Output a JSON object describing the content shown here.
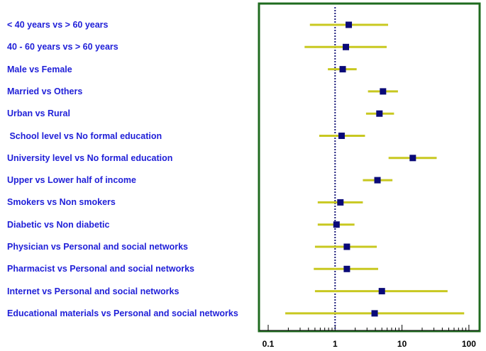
{
  "chart_data": {
    "type": "forest",
    "xscale": "log",
    "xlim": [
      0.07,
      125
    ],
    "reference_line": 1,
    "xticks": [
      {
        "value": 0.1,
        "label": "0.1"
      },
      {
        "value": 1,
        "label": "1"
      },
      {
        "value": 10,
        "label": "10"
      },
      {
        "value": 100,
        "label": "100"
      }
    ],
    "rows": [
      {
        "label": "< 40 years vs > 60 years",
        "or": 1.6,
        "low": 0.42,
        "high": 6.2
      },
      {
        "label": "40 - 60 years vs > 60 years",
        "or": 1.45,
        "low": 0.35,
        "high": 5.9
      },
      {
        "label": "Male vs Female",
        "or": 1.3,
        "low": 0.78,
        "high": 2.1
      },
      {
        "label": "Married vs Others",
        "or": 5.2,
        "low": 3.1,
        "high": 8.7
      },
      {
        "label": "Urban vs Rural",
        "or": 4.6,
        "low": 2.9,
        "high": 7.6
      },
      {
        "label": " School level vs No formal education",
        "or": 1.25,
        "low": 0.58,
        "high": 2.8
      },
      {
        "label": "University level vs No formal education",
        "or": 14.5,
        "low": 6.3,
        "high": 33
      },
      {
        "label": "Upper vs Lower half of income",
        "or": 4.3,
        "low": 2.6,
        "high": 7.2
      },
      {
        "label": "Smokers vs Non smokers",
        "or": 1.2,
        "low": 0.55,
        "high": 2.6
      },
      {
        "label": "Diabetic vs Non diabetic",
        "or": 1.05,
        "low": 0.55,
        "high": 1.95
      },
      {
        "label": "Physician vs Personal and social networks",
        "or": 1.5,
        "low": 0.5,
        "high": 4.2
      },
      {
        "label": "Pharmacist vs Personal and social networks",
        "or": 1.5,
        "low": 0.48,
        "high": 4.4
      },
      {
        "label": "Internet vs Personal and social networks",
        "or": 5.0,
        "low": 0.5,
        "high": 48
      },
      {
        "label": "Educational materials vs Personal and social networks",
        "or": 3.9,
        "low": 0.18,
        "high": 85
      }
    ],
    "colors": {
      "ci_line": "#c8c820",
      "marker": "#0a0a78",
      "label_text": "#1f1fd8",
      "frame": "#1f6b1f",
      "reference_line": "#1a1a7a"
    }
  }
}
